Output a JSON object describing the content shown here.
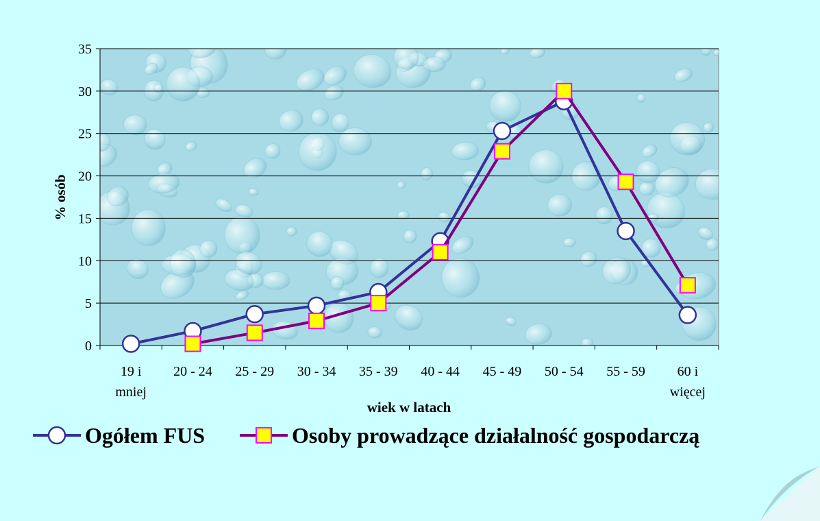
{
  "chart_data": {
    "type": "line",
    "title": "",
    "xlabel": "wiek w latach",
    "ylabel": "% osób",
    "ylim": [
      0,
      35
    ],
    "yticks": [
      0,
      5,
      10,
      15,
      20,
      25,
      30,
      35
    ],
    "grid": true,
    "legend": "bottom",
    "categories": [
      [
        "19 i",
        "mniej"
      ],
      [
        "20 - 24"
      ],
      [
        "25 - 29"
      ],
      [
        "30 - 34"
      ],
      [
        "35 - 39"
      ],
      [
        "40 - 44"
      ],
      [
        "45 - 49"
      ],
      [
        "50 - 54"
      ],
      [
        "55 - 59"
      ],
      [
        "60 i",
        "więcej"
      ]
    ],
    "series": [
      {
        "name": "Ogółem FUS",
        "line_color": "#333399",
        "marker": "circle",
        "marker_fill": "#ffffff",
        "marker_stroke": "#333399",
        "values": [
          0.2,
          1.7,
          3.7,
          4.7,
          6.3,
          12.3,
          25.3,
          28.8,
          13.5,
          3.6
        ]
      },
      {
        "name": "Osoby prowadzące działalność gospodarczą",
        "line_color": "#800080",
        "marker": "square",
        "marker_fill": "#ffff00",
        "marker_stroke": "#ff00ff",
        "values": [
          null,
          0.2,
          1.5,
          2.9,
          5.0,
          11.0,
          22.9,
          30.0,
          19.3,
          7.1
        ]
      }
    ]
  },
  "colors": {
    "page_background": "#ccffff",
    "plot_background": "#a8dbe6",
    "page_curl": "#a9d3d3"
  }
}
